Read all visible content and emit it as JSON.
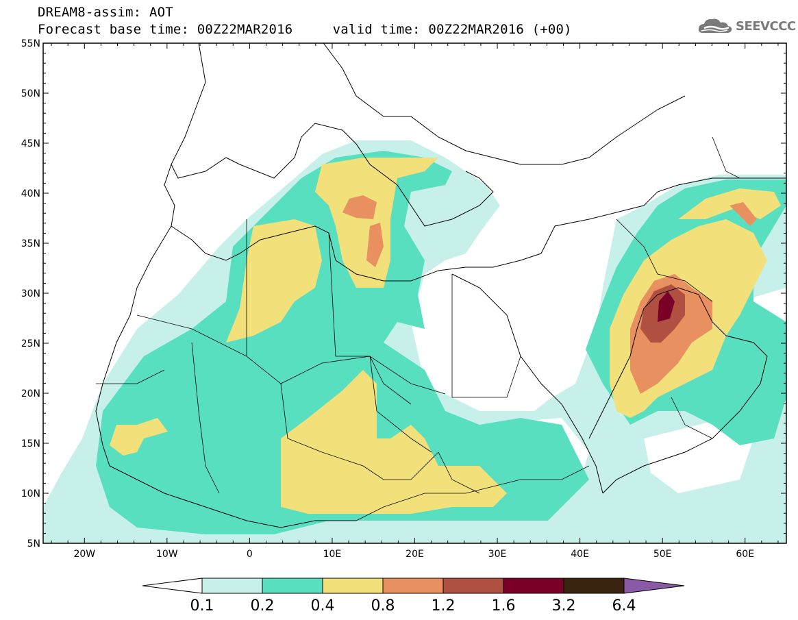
{
  "header": {
    "title": "DREAM8-assim: AOT",
    "base_time_label": "Forecast base time: 00Z22MAR2016",
    "valid_time_label": "valid time: 00Z22MAR2016 (+00)"
  },
  "logo": {
    "text": "SEEVCCC",
    "icon": "cloud-icon"
  },
  "map": {
    "variable": "AOT",
    "lon_range": [
      -25,
      65
    ],
    "lat_range": [
      5,
      55
    ],
    "lat_ticks": [
      "55N",
      "50N",
      "45N",
      "40N",
      "35N",
      "30N",
      "25N",
      "20N",
      "15N",
      "10N",
      "5N"
    ],
    "lon_ticks": [
      "20W",
      "10W",
      "0",
      "10E",
      "20E",
      "30E",
      "40E",
      "50E",
      "60E"
    ]
  },
  "colorbar": {
    "levels": [
      "0.1",
      "0.2",
      "0.4",
      "0.8",
      "1.2",
      "1.6",
      "3.2",
      "6.4"
    ],
    "colors": [
      "#ffffff",
      "#c8f0ea",
      "#58dfc0",
      "#f2e07a",
      "#e89060",
      "#b05040",
      "#7a0028",
      "#3a2410",
      "#8a5aa6"
    ]
  }
}
